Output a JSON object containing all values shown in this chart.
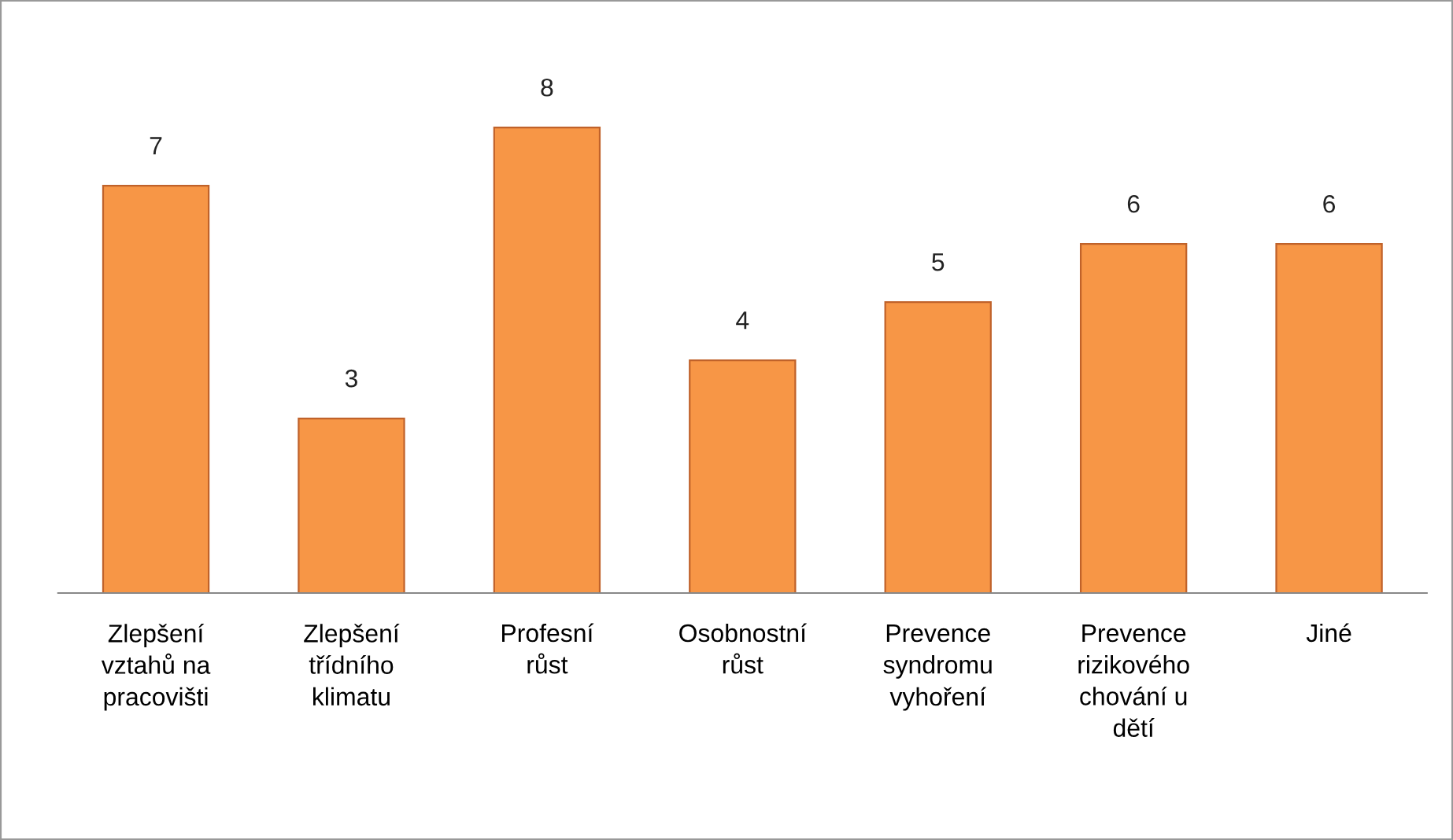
{
  "chart_data": {
    "type": "bar",
    "categories": [
      "Zlepšení\nvztahů na\npracovišti",
      "Zlepšení\ntřídního\nklimatu",
      "Profesní\nrůst",
      "Osobnostní\nrůst",
      "Prevence\nsyndromu\nvyhoření",
      "Prevence\nrizikového\nchování u\ndětí",
      "Jiné"
    ],
    "values": [
      7,
      3,
      8,
      4,
      5,
      6,
      6
    ],
    "color": "#f79646",
    "data_labels": true,
    "grid": false,
    "legend": false,
    "tick_labels": "x"
  }
}
